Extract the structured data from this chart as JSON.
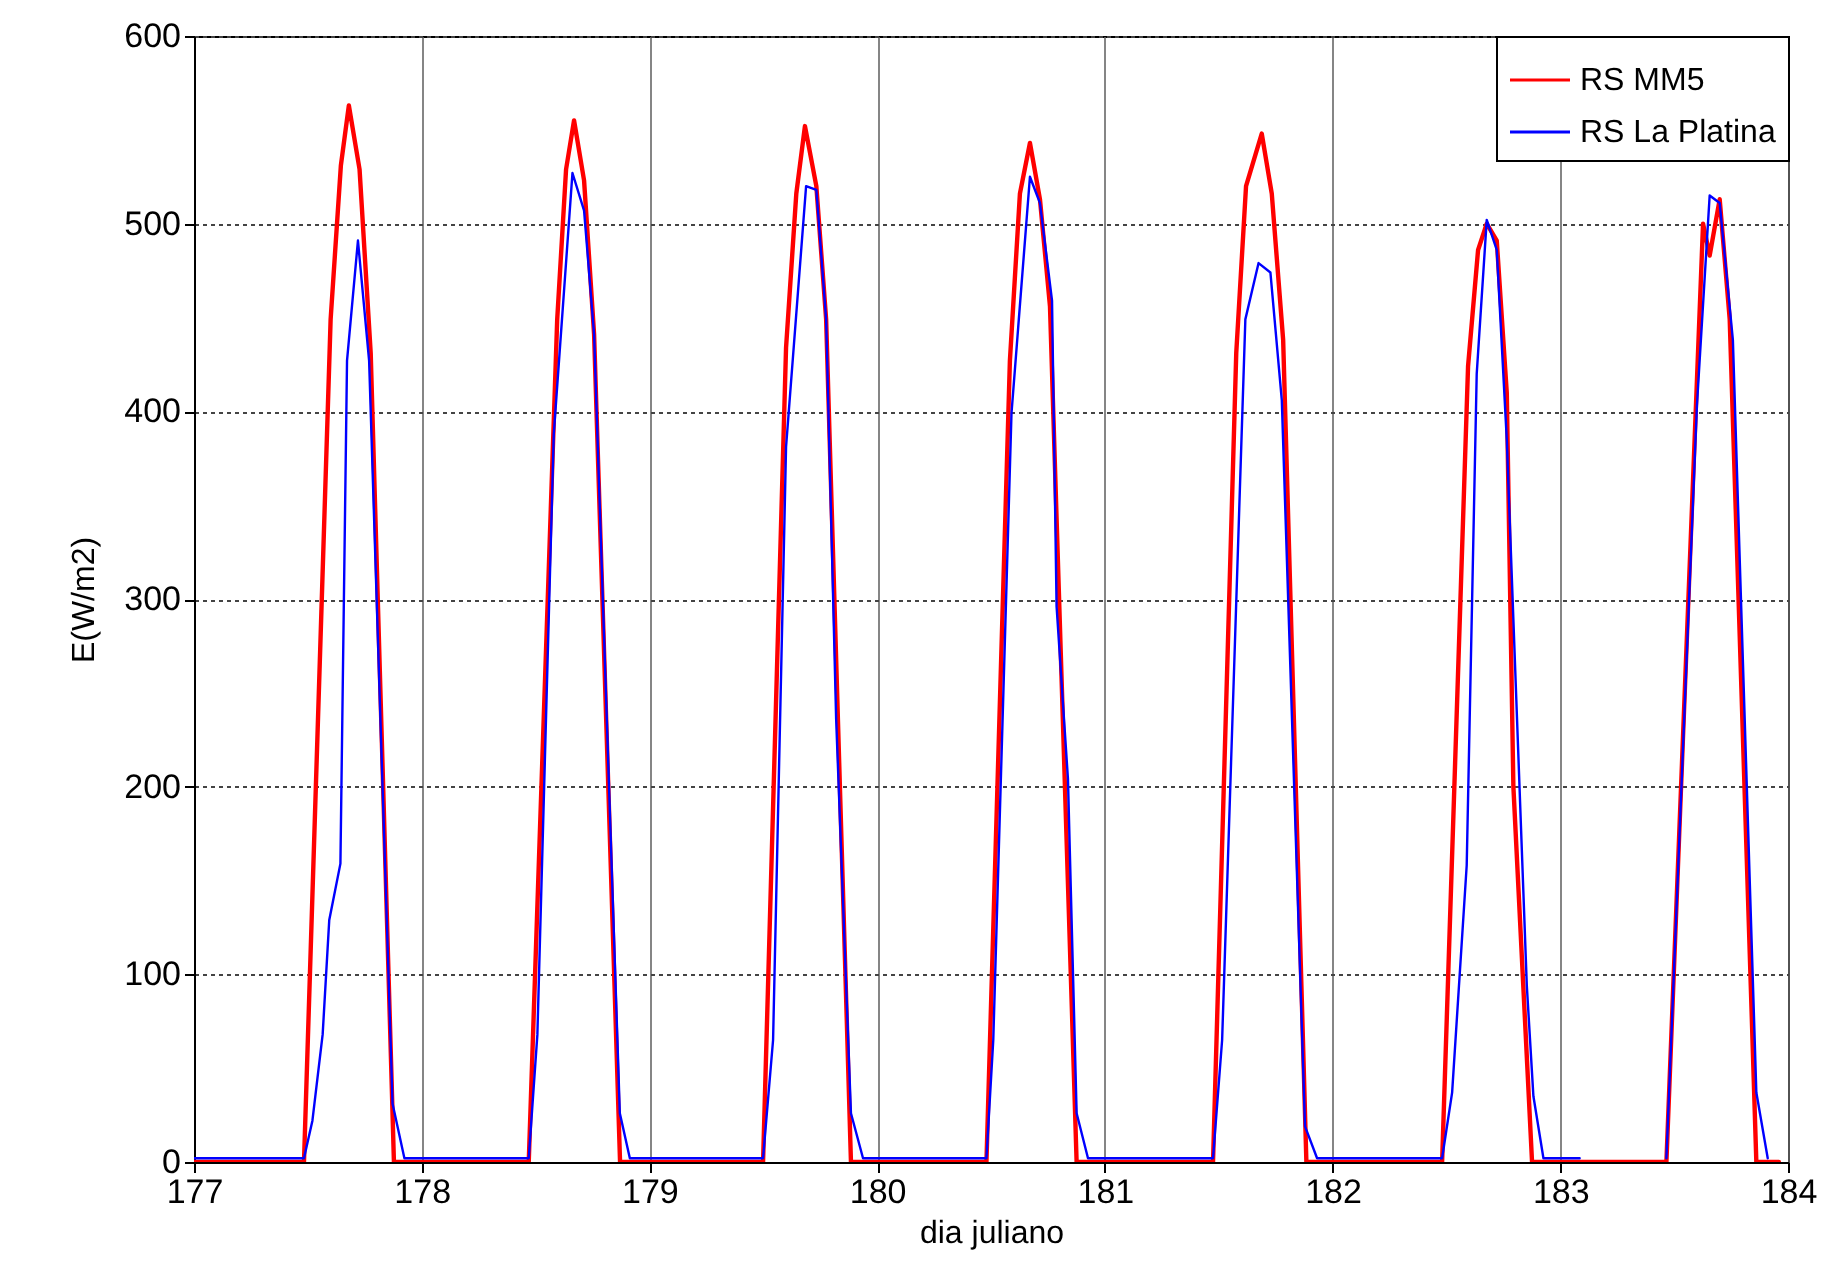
{
  "chart_data": {
    "type": "line",
    "xlabel": "dia juliano",
    "ylabel": "E(W/m2)",
    "xlim": [
      177,
      184
    ],
    "ylim": [
      0,
      600
    ],
    "xticks": [
      177,
      178,
      179,
      180,
      181,
      182,
      183,
      184
    ],
    "yticks": [
      0,
      100,
      200,
      300,
      400,
      500,
      600
    ],
    "grid": true,
    "legend": "top right",
    "series": [
      {
        "name": "RS MM5",
        "color": "#ff0000",
        "x": [
          177.0,
          177.483,
          177.6,
          177.645,
          177.68,
          177.727,
          177.776,
          177.878,
          178.47,
          178.595,
          178.634,
          178.669,
          178.713,
          178.757,
          178.871,
          179.499,
          179.6,
          179.645,
          179.683,
          179.733,
          179.776,
          179.885,
          180.48,
          180.583,
          180.627,
          180.671,
          180.715,
          180.759,
          180.876,
          181.475,
          181.577,
          181.62,
          181.689,
          181.733,
          181.783,
          181.885,
          182.481,
          182.595,
          182.639,
          182.677,
          182.721,
          182.765,
          182.794,
          182.876,
          183.466,
          183.627,
          183.656,
          183.7,
          183.744,
          183.861,
          183.96
        ],
        "values": [
          0,
          0,
          449,
          531,
          563,
          529,
          431,
          0,
          0,
          449,
          529,
          555,
          523,
          441,
          0,
          0,
          434,
          516,
          552,
          520,
          449,
          0,
          0,
          427,
          516,
          543,
          513,
          456,
          0,
          0,
          431,
          520,
          548,
          516,
          438,
          0,
          0,
          424,
          486,
          500,
          491,
          410,
          200,
          0,
          0,
          500,
          483,
          513,
          449,
          0,
          0
        ]
      },
      {
        "name": "RS La Platina",
        "color": "#0000ff",
        "x": [
          177.0,
          177.483,
          177.52,
          177.565,
          177.594,
          177.643,
          177.672,
          177.72,
          177.769,
          177.872,
          177.924,
          178.47,
          178.508,
          178.58,
          178.662,
          178.713,
          178.757,
          178.87,
          178.914,
          179.499,
          179.543,
          179.6,
          179.688,
          179.733,
          179.776,
          179.82,
          179.885,
          179.938,
          180.48,
          180.51,
          180.59,
          180.671,
          180.715,
          180.768,
          180.788,
          180.838,
          180.876,
          180.926,
          181.475,
          181.515,
          181.617,
          181.675,
          181.727,
          181.777,
          181.879,
          181.932,
          182.481,
          182.525,
          182.589,
          182.633,
          182.677,
          182.721,
          182.765,
          182.853,
          182.882,
          182.926,
          183.085,
          183.12,
          183.466,
          183.6,
          183.656,
          183.7,
          183.758,
          183.861,
          183.911
        ],
        "values": [
          2,
          2,
          22,
          68,
          129,
          159,
          427,
          491,
          427,
          31,
          2,
          2,
          68,
          388,
          527,
          507,
          441,
          26,
          2,
          2,
          65,
          381,
          520,
          518,
          449,
          236,
          26,
          2,
          2,
          65,
          399,
          525,
          511,
          459,
          296,
          204,
          26,
          2,
          2,
          65,
          449,
          479,
          474,
          406,
          19,
          2,
          2,
          37,
          158,
          420,
          502,
          486,
          385,
          94,
          35,
          2,
          2,
          null,
          2,
          403,
          515,
          511,
          438,
          37,
          2
        ]
      }
    ]
  }
}
